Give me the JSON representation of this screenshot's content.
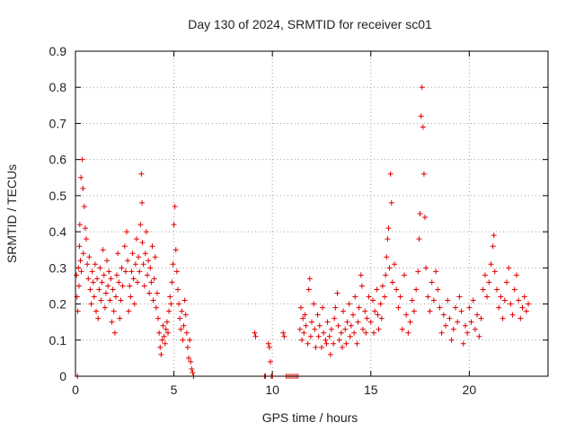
{
  "chart_data": {
    "type": "scatter",
    "title": "Day 130 of 2024, SRMTID for receiver sc01",
    "xlabel": "GPS time / hours",
    "ylabel": "SRMTID / TECUs",
    "xlim": [
      0,
      24
    ],
    "ylim": [
      0,
      0.9
    ],
    "xticks": [
      0,
      5,
      10,
      15,
      20
    ],
    "xtick_labels": [
      "0",
      "5",
      "10",
      "15",
      "20"
    ],
    "yticks": [
      0,
      0.1,
      0.2,
      0.3,
      0.4,
      0.5,
      0.6,
      0.7,
      0.8,
      0.9
    ],
    "ytick_labels": [
      "0",
      "0.1",
      "0.2",
      "0.3",
      "0.4",
      "0.5",
      "0.6",
      "0.7",
      "0.8",
      "0.9"
    ],
    "grid": true,
    "marker": "plus",
    "color": "#e00000",
    "series": [
      {
        "name": "sc01",
        "points": [
          [
            0.05,
            0.28
          ],
          [
            0.08,
            0.22
          ],
          [
            0.1,
            0.0
          ],
          [
            0.12,
            0.18
          ],
          [
            0.15,
            0.3
          ],
          [
            0.18,
            0.25
          ],
          [
            0.2,
            0.36
          ],
          [
            0.22,
            0.42
          ],
          [
            0.25,
            0.32
          ],
          [
            0.28,
            0.55
          ],
          [
            0.3,
            0.29
          ],
          [
            0.35,
            0.6
          ],
          [
            0.38,
            0.52
          ],
          [
            0.4,
            0.34
          ],
          [
            0.45,
            0.47
          ],
          [
            0.5,
            0.41
          ],
          [
            0.55,
            0.38
          ],
          [
            0.6,
            0.31
          ],
          [
            0.65,
            0.27
          ],
          [
            0.7,
            0.33
          ],
          [
            0.75,
            0.24
          ],
          [
            0.8,
            0.2
          ],
          [
            0.85,
            0.29
          ],
          [
            0.9,
            0.26
          ],
          [
            0.95,
            0.22
          ],
          [
            1.0,
            0.31
          ],
          [
            1.05,
            0.18
          ],
          [
            1.1,
            0.27
          ],
          [
            1.15,
            0.16
          ],
          [
            1.2,
            0.24
          ],
          [
            1.25,
            0.3
          ],
          [
            1.3,
            0.21
          ],
          [
            1.35,
            0.26
          ],
          [
            1.4,
            0.35
          ],
          [
            1.45,
            0.28
          ],
          [
            1.5,
            0.19
          ],
          [
            1.55,
            0.23
          ],
          [
            1.6,
            0.32
          ],
          [
            1.65,
            0.25
          ],
          [
            1.7,
            0.29
          ],
          [
            1.75,
            0.21
          ],
          [
            1.8,
            0.27
          ],
          [
            1.85,
            0.15
          ],
          [
            1.9,
            0.24
          ],
          [
            1.95,
            0.18
          ],
          [
            2.0,
            0.12
          ],
          [
            2.05,
            0.22
          ],
          [
            2.1,
            0.28
          ],
          [
            2.15,
            0.34
          ],
          [
            2.2,
            0.26
          ],
          [
            2.25,
            0.16
          ],
          [
            2.3,
            0.21
          ],
          [
            2.35,
            0.3
          ],
          [
            2.4,
            0.25
          ],
          [
            2.5,
            0.36
          ],
          [
            2.55,
            0.29
          ],
          [
            2.6,
            0.4
          ],
          [
            2.65,
            0.32
          ],
          [
            2.7,
            0.18
          ],
          [
            2.75,
            0.25
          ],
          [
            2.8,
            0.22
          ],
          [
            2.85,
            0.29
          ],
          [
            2.9,
            0.34
          ],
          [
            2.95,
            0.27
          ],
          [
            3.0,
            0.2
          ],
          [
            3.05,
            0.31
          ],
          [
            3.1,
            0.38
          ],
          [
            3.15,
            0.26
          ],
          [
            3.2,
            0.33
          ],
          [
            3.25,
            0.29
          ],
          [
            3.3,
            0.42
          ],
          [
            3.35,
            0.56
          ],
          [
            3.38,
            0.48
          ],
          [
            3.4,
            0.37
          ],
          [
            3.45,
            0.31
          ],
          [
            3.5,
            0.25
          ],
          [
            3.55,
            0.34
          ],
          [
            3.6,
            0.4
          ],
          [
            3.65,
            0.28
          ],
          [
            3.7,
            0.32
          ],
          [
            3.75,
            0.23
          ],
          [
            3.8,
            0.3
          ],
          [
            3.85,
            0.26
          ],
          [
            3.9,
            0.36
          ],
          [
            3.95,
            0.21
          ],
          [
            4.0,
            0.27
          ],
          [
            4.05,
            0.33
          ],
          [
            4.1,
            0.19
          ],
          [
            4.15,
            0.23
          ],
          [
            4.2,
            0.16
          ],
          [
            4.25,
            0.12
          ],
          [
            4.3,
            0.08
          ],
          [
            4.35,
            0.06
          ],
          [
            4.4,
            0.1
          ],
          [
            4.45,
            0.14
          ],
          [
            4.5,
            0.11
          ],
          [
            4.55,
            0.09
          ],
          [
            4.6,
            0.13
          ],
          [
            4.65,
            0.15
          ],
          [
            4.7,
            0.12
          ],
          [
            4.75,
            0.18
          ],
          [
            4.8,
            0.22
          ],
          [
            4.85,
            0.2
          ],
          [
            4.9,
            0.26
          ],
          [
            4.95,
            0.31
          ],
          [
            5.0,
            0.42
          ],
          [
            5.05,
            0.47
          ],
          [
            5.1,
            0.35
          ],
          [
            5.15,
            0.29
          ],
          [
            5.2,
            0.24
          ],
          [
            5.25,
            0.2
          ],
          [
            5.3,
            0.16
          ],
          [
            5.35,
            0.13
          ],
          [
            5.4,
            0.18
          ],
          [
            5.45,
            0.1
          ],
          [
            5.5,
            0.14
          ],
          [
            5.55,
            0.21
          ],
          [
            5.6,
            0.17
          ],
          [
            5.65,
            0.12
          ],
          [
            5.7,
            0.08
          ],
          [
            5.75,
            0.05
          ],
          [
            5.8,
            0.1
          ],
          [
            5.85,
            0.04
          ],
          [
            5.9,
            0.02
          ],
          [
            5.95,
            0.01
          ],
          [
            6.0,
            0.0
          ],
          [
            9.1,
            0.12
          ],
          [
            9.15,
            0.11
          ],
          [
            9.6,
            0.0
          ],
          [
            9.65,
            0.0
          ],
          [
            9.8,
            0.09
          ],
          [
            9.85,
            0.08
          ],
          [
            9.9,
            0.04
          ],
          [
            9.95,
            0.0
          ],
          [
            10.0,
            0.0
          ],
          [
            10.55,
            0.12
          ],
          [
            10.6,
            0.11
          ],
          [
            10.7,
            0.0
          ],
          [
            10.8,
            0.0
          ],
          [
            10.9,
            0.0
          ],
          [
            11.0,
            0.0
          ],
          [
            11.1,
            0.0
          ],
          [
            11.2,
            0.0
          ],
          [
            11.3,
            0.0
          ],
          [
            11.4,
            0.13
          ],
          [
            11.45,
            0.19
          ],
          [
            11.5,
            0.1
          ],
          [
            11.55,
            0.16
          ],
          [
            11.6,
            0.12
          ],
          [
            11.65,
            0.17
          ],
          [
            11.7,
            0.14
          ],
          [
            11.8,
            0.09
          ],
          [
            11.85,
            0.24
          ],
          [
            11.9,
            0.27
          ],
          [
            11.95,
            0.11
          ],
          [
            12.0,
            0.15
          ],
          [
            12.1,
            0.2
          ],
          [
            12.15,
            0.13
          ],
          [
            12.2,
            0.08
          ],
          [
            12.3,
            0.17
          ],
          [
            12.35,
            0.11
          ],
          [
            12.4,
            0.14
          ],
          [
            12.5,
            0.08
          ],
          [
            12.55,
            0.19
          ],
          [
            12.6,
            0.12
          ],
          [
            12.7,
            0.1
          ],
          [
            12.75,
            0.09
          ],
          [
            12.8,
            0.15
          ],
          [
            12.9,
            0.11
          ],
          [
            12.95,
            0.06
          ],
          [
            13.0,
            0.13
          ],
          [
            13.1,
            0.09
          ],
          [
            13.15,
            0.16
          ],
          [
            13.2,
            0.19
          ],
          [
            13.3,
            0.23
          ],
          [
            13.35,
            0.14
          ],
          [
            13.4,
            0.1
          ],
          [
            13.5,
            0.12
          ],
          [
            13.55,
            0.08
          ],
          [
            13.6,
            0.18
          ],
          [
            13.7,
            0.13
          ],
          [
            13.75,
            0.09
          ],
          [
            13.8,
            0.15
          ],
          [
            13.9,
            0.2
          ],
          [
            13.95,
            0.11
          ],
          [
            14.0,
            0.14
          ],
          [
            14.1,
            0.17
          ],
          [
            14.15,
            0.12
          ],
          [
            14.2,
            0.22
          ],
          [
            14.3,
            0.09
          ],
          [
            14.35,
            0.15
          ],
          [
            14.4,
            0.19
          ],
          [
            14.5,
            0.28
          ],
          [
            14.55,
            0.25
          ],
          [
            14.6,
            0.13
          ],
          [
            14.7,
            0.18
          ],
          [
            14.75,
            0.12
          ],
          [
            14.8,
            0.16
          ],
          [
            14.9,
            0.22
          ],
          [
            15.0,
            0.15
          ],
          [
            15.1,
            0.21
          ],
          [
            15.15,
            0.12
          ],
          [
            15.2,
            0.18
          ],
          [
            15.3,
            0.24
          ],
          [
            15.35,
            0.17
          ],
          [
            15.4,
            0.13
          ],
          [
            15.5,
            0.2
          ],
          [
            15.55,
            0.16
          ],
          [
            15.6,
            0.25
          ],
          [
            15.7,
            0.22
          ],
          [
            15.75,
            0.28
          ],
          [
            15.8,
            0.33
          ],
          [
            15.85,
            0.38
          ],
          [
            15.9,
            0.41
          ],
          [
            15.95,
            0.3
          ],
          [
            16.0,
            0.56
          ],
          [
            16.05,
            0.48
          ],
          [
            16.1,
            0.26
          ],
          [
            16.2,
            0.31
          ],
          [
            16.3,
            0.24
          ],
          [
            16.4,
            0.19
          ],
          [
            16.5,
            0.22
          ],
          [
            16.6,
            0.13
          ],
          [
            16.7,
            0.28
          ],
          [
            16.8,
            0.17
          ],
          [
            16.9,
            0.12
          ],
          [
            17.0,
            0.15
          ],
          [
            17.1,
            0.21
          ],
          [
            17.2,
            0.18
          ],
          [
            17.3,
            0.24
          ],
          [
            17.4,
            0.29
          ],
          [
            17.45,
            0.38
          ],
          [
            17.5,
            0.45
          ],
          [
            17.55,
            0.72
          ],
          [
            17.6,
            0.8
          ],
          [
            17.65,
            0.69
          ],
          [
            17.7,
            0.56
          ],
          [
            17.75,
            0.44
          ],
          [
            17.8,
            0.3
          ],
          [
            17.9,
            0.22
          ],
          [
            18.0,
            0.18
          ],
          [
            18.1,
            0.26
          ],
          [
            18.2,
            0.21
          ],
          [
            18.3,
            0.29
          ],
          [
            18.4,
            0.24
          ],
          [
            18.5,
            0.19
          ],
          [
            18.6,
            0.12
          ],
          [
            18.7,
            0.17
          ],
          [
            18.8,
            0.14
          ],
          [
            18.9,
            0.21
          ],
          [
            19.0,
            0.16
          ],
          [
            19.1,
            0.1
          ],
          [
            19.2,
            0.13
          ],
          [
            19.3,
            0.19
          ],
          [
            19.4,
            0.15
          ],
          [
            19.5,
            0.22
          ],
          [
            19.6,
            0.18
          ],
          [
            19.7,
            0.09
          ],
          [
            19.8,
            0.14
          ],
          [
            19.9,
            0.12
          ],
          [
            20.0,
            0.19
          ],
          [
            20.1,
            0.15
          ],
          [
            20.2,
            0.21
          ],
          [
            20.3,
            0.13
          ],
          [
            20.4,
            0.17
          ],
          [
            20.5,
            0.11
          ],
          [
            20.6,
            0.16
          ],
          [
            20.7,
            0.24
          ],
          [
            20.8,
            0.28
          ],
          [
            20.9,
            0.22
          ],
          [
            21.0,
            0.26
          ],
          [
            21.1,
            0.31
          ],
          [
            21.2,
            0.36
          ],
          [
            21.25,
            0.39
          ],
          [
            21.3,
            0.29
          ],
          [
            21.4,
            0.24
          ],
          [
            21.5,
            0.19
          ],
          [
            21.6,
            0.22
          ],
          [
            21.7,
            0.16
          ],
          [
            21.8,
            0.21
          ],
          [
            21.9,
            0.26
          ],
          [
            22.0,
            0.3
          ],
          [
            22.1,
            0.2
          ],
          [
            22.2,
            0.17
          ],
          [
            22.3,
            0.24
          ],
          [
            22.4,
            0.28
          ],
          [
            22.5,
            0.21
          ],
          [
            22.6,
            0.16
          ],
          [
            22.7,
            0.19
          ],
          [
            22.8,
            0.22
          ],
          [
            22.9,
            0.18
          ],
          [
            23.0,
            0.2
          ]
        ]
      }
    ]
  }
}
